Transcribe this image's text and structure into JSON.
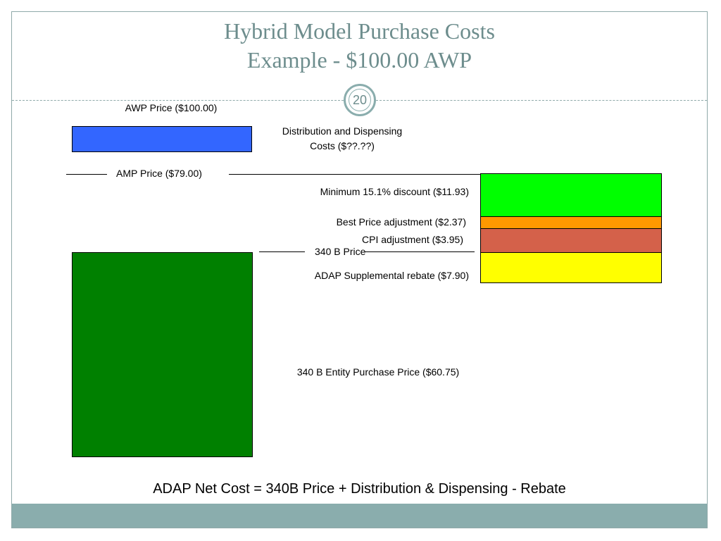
{
  "slide": {
    "title_line1": "Hybrid Model Purchase Costs",
    "title_line2": "Example - $100.00 AWP",
    "page_number": "20"
  },
  "diagram": {
    "awp_label": "AWP Price ($100.00)",
    "distribution_label_line1": "Distribution and Dispensing",
    "distribution_label_line2": "Costs ($??.??)",
    "amp_label": "AMP Price ($79.00)",
    "min_discount_label": "Minimum 15.1% discount ($11.93)",
    "best_price_label": "Best Price adjustment ($2.37)",
    "cpi_label": "CPI adjustment ($3.95)",
    "price_340b_label": "340 B Price",
    "adap_rebate_label": "ADAP Supplemental rebate ($7.90)",
    "entity_purchase_label": "340 B Entity Purchase Price ($60.75)",
    "colors": {
      "awp_box": "#3366ff",
      "min_discount": "#00ff00",
      "best_price": "#ff9900",
      "cpi": "#d4614a",
      "adap_rebate": "#ffff00",
      "entity_purchase": "#008000"
    }
  },
  "formula": "ADAP Net Cost = 340B Price + Distribution & Dispensing - Rebate"
}
